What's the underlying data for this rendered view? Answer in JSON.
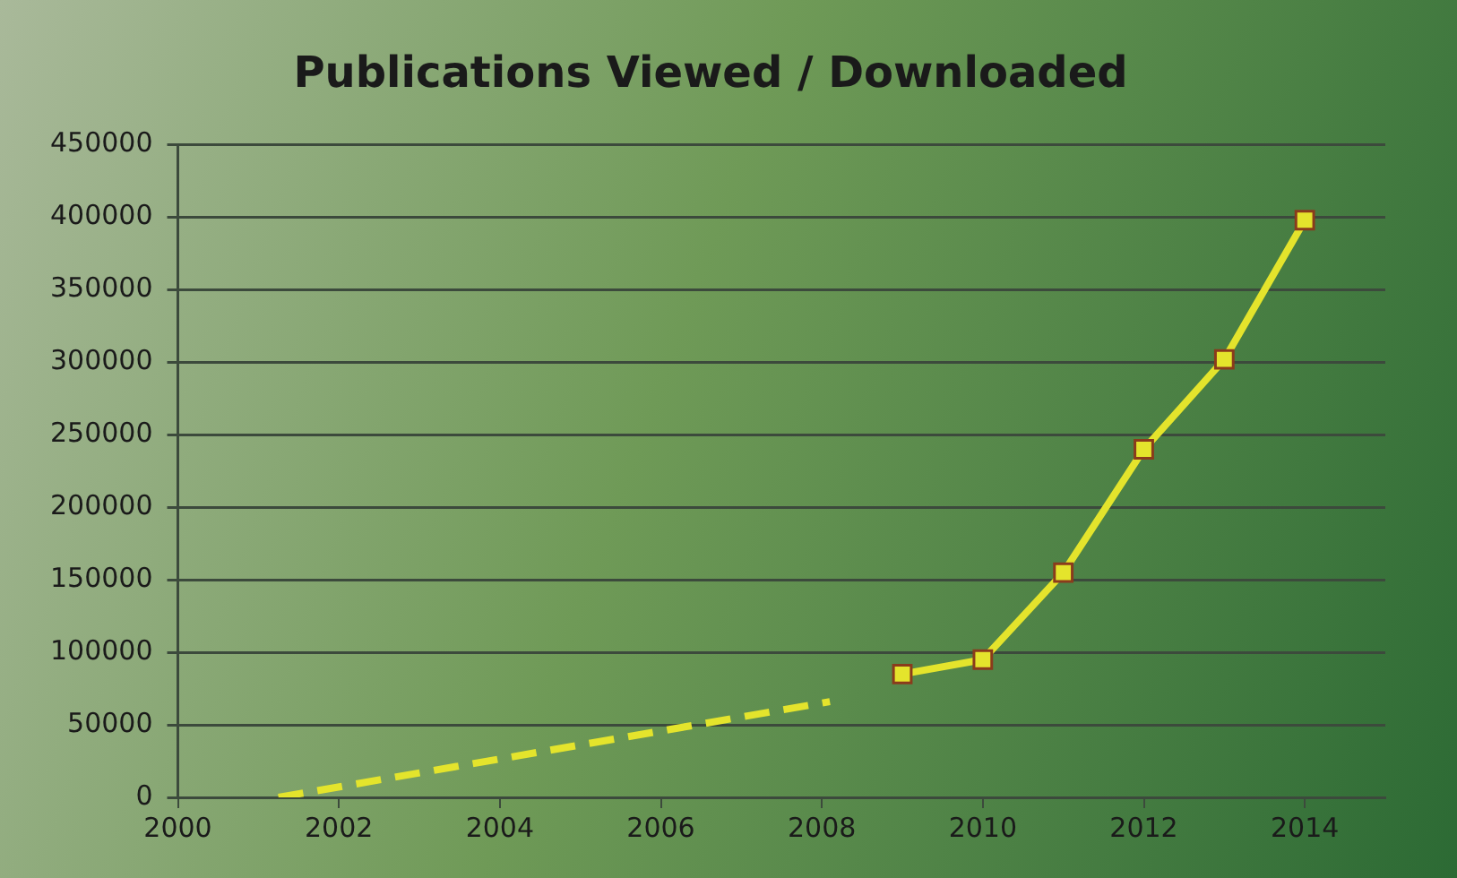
{
  "chart_data": {
    "type": "line",
    "title": "Publications Viewed / Downloaded",
    "series": [
      {
        "color": "#e4e42c",
        "x": [
          2001.25,
          2008.1
        ],
        "values": [
          0,
          66000
        ],
        "line_style": "dashed",
        "marker": "none"
      },
      {
        "color": "#e4e42c",
        "x": [
          2009,
          2010,
          2011,
          2012,
          2013,
          2014
        ],
        "values": [
          85000,
          95000,
          155000,
          240000,
          302000,
          398000
        ],
        "line_style": "solid",
        "marker": "square"
      }
    ],
    "xlim": [
      2000,
      2015
    ],
    "xticks": [
      2000,
      2002,
      2004,
      2006,
      2008,
      2010,
      2012,
      2014
    ],
    "ylim": [
      0,
      450000
    ],
    "yticks": [
      0,
      50000,
      100000,
      150000,
      200000,
      250000,
      300000,
      350000,
      400000,
      450000
    ],
    "grid": "y",
    "legend": false
  }
}
